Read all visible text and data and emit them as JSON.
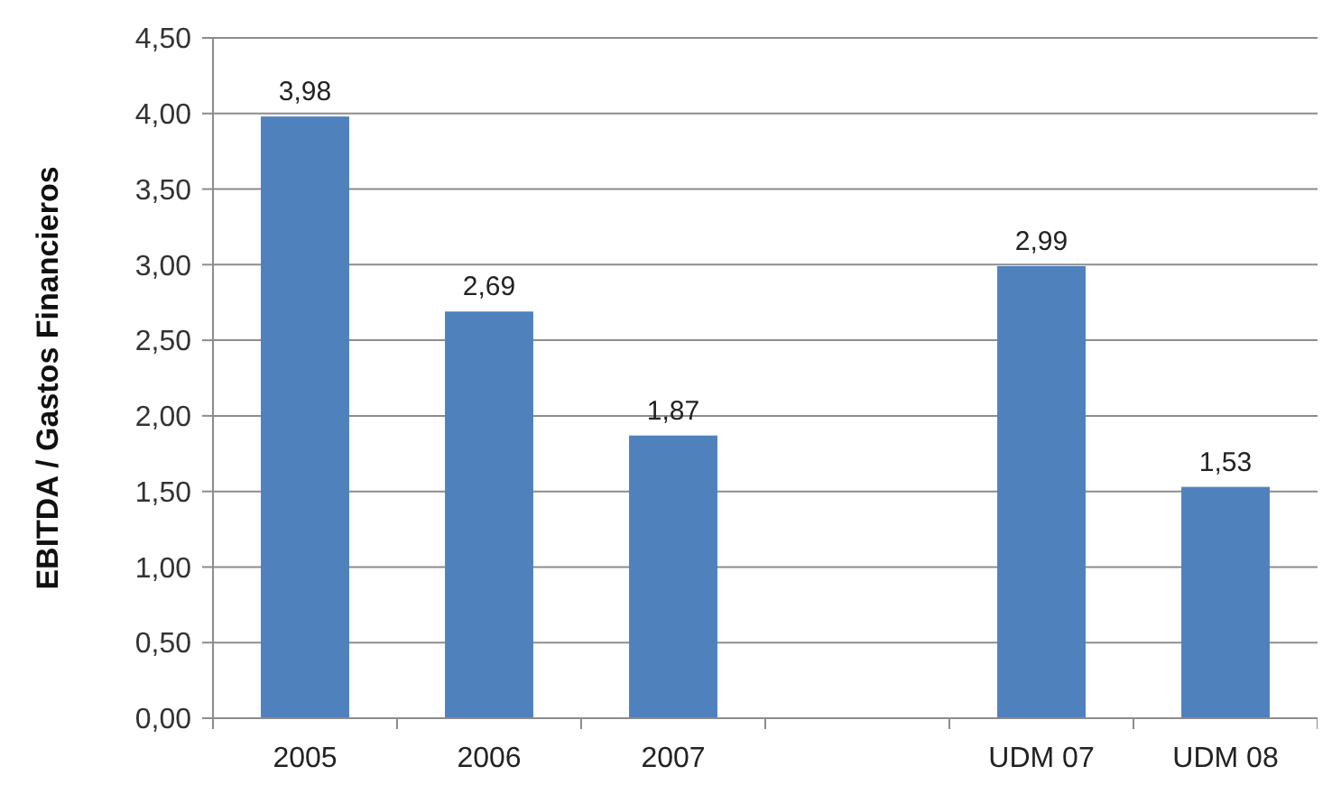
{
  "chart_data": {
    "type": "bar",
    "ylabel": "EBITDA / Gastos Financieros",
    "categories": [
      "2005",
      "2006",
      "2007",
      null,
      "UDM 07",
      "UDM 08"
    ],
    "values": [
      3.98,
      2.69,
      1.87,
      null,
      2.99,
      1.53
    ],
    "value_labels": [
      "3,98",
      "2,69",
      "1,87",
      null,
      "2,99",
      "1,53"
    ],
    "color": "#4f81bd",
    "ylim": [
      0,
      4.5
    ],
    "yticks": [
      {
        "value": 0,
        "label": "0,00"
      },
      {
        "value": 0.5,
        "label": "0,50"
      },
      {
        "value": 1,
        "label": "1,00"
      },
      {
        "value": 1.5,
        "label": "1,50"
      },
      {
        "value": 2,
        "label": "2,00"
      },
      {
        "value": 2.5,
        "label": "2,50"
      },
      {
        "value": 3,
        "label": "3,00"
      },
      {
        "value": 3.5,
        "label": "3,50"
      },
      {
        "value": 4,
        "label": "4,00"
      },
      {
        "value": 4.5,
        "label": "4,50"
      }
    ],
    "grid": true
  }
}
